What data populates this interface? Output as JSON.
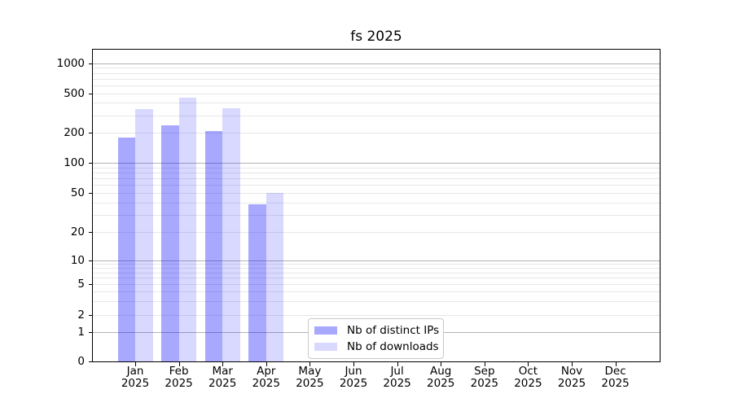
{
  "colors": {
    "background": "#ffffff",
    "bar_ips": "rgba(0,0,255,0.34)",
    "bar_downloads": "rgba(0,0,255,0.15)",
    "gridline_major": "#b3b3b3",
    "gridline_minor": "#e7e7e7",
    "axis_spine": "#000000",
    "legend_border": "#c9c9c9"
  },
  "chart_data": {
    "type": "bar",
    "title": "fs 2025",
    "categories": [
      "Jan",
      "Feb",
      "Mar",
      "Apr",
      "May",
      "Jun",
      "Jul",
      "Aug",
      "Sep",
      "Oct",
      "Nov",
      "Dec"
    ],
    "category_year": "2025",
    "series": [
      {
        "name": "Nb of distinct IPs",
        "color": "rgba(0,0,255,0.34)",
        "values": [
          180,
          240,
          210,
          38,
          0,
          0,
          0,
          0,
          0,
          0,
          0,
          0
        ]
      },
      {
        "name": "Nb of downloads",
        "color": "rgba(0,0,255,0.15)",
        "values": [
          345,
          450,
          355,
          50,
          0,
          0,
          0,
          0,
          0,
          0,
          0,
          0
        ]
      }
    ],
    "xlabel": "",
    "ylabel": "",
    "y_ticks": [
      0,
      1,
      2,
      5,
      10,
      20,
      50,
      100,
      200,
      500,
      1000
    ],
    "y_scale": "log-with-zero",
    "ylim": [
      0,
      1380
    ],
    "grid": true,
    "legend_position": "lower center"
  }
}
